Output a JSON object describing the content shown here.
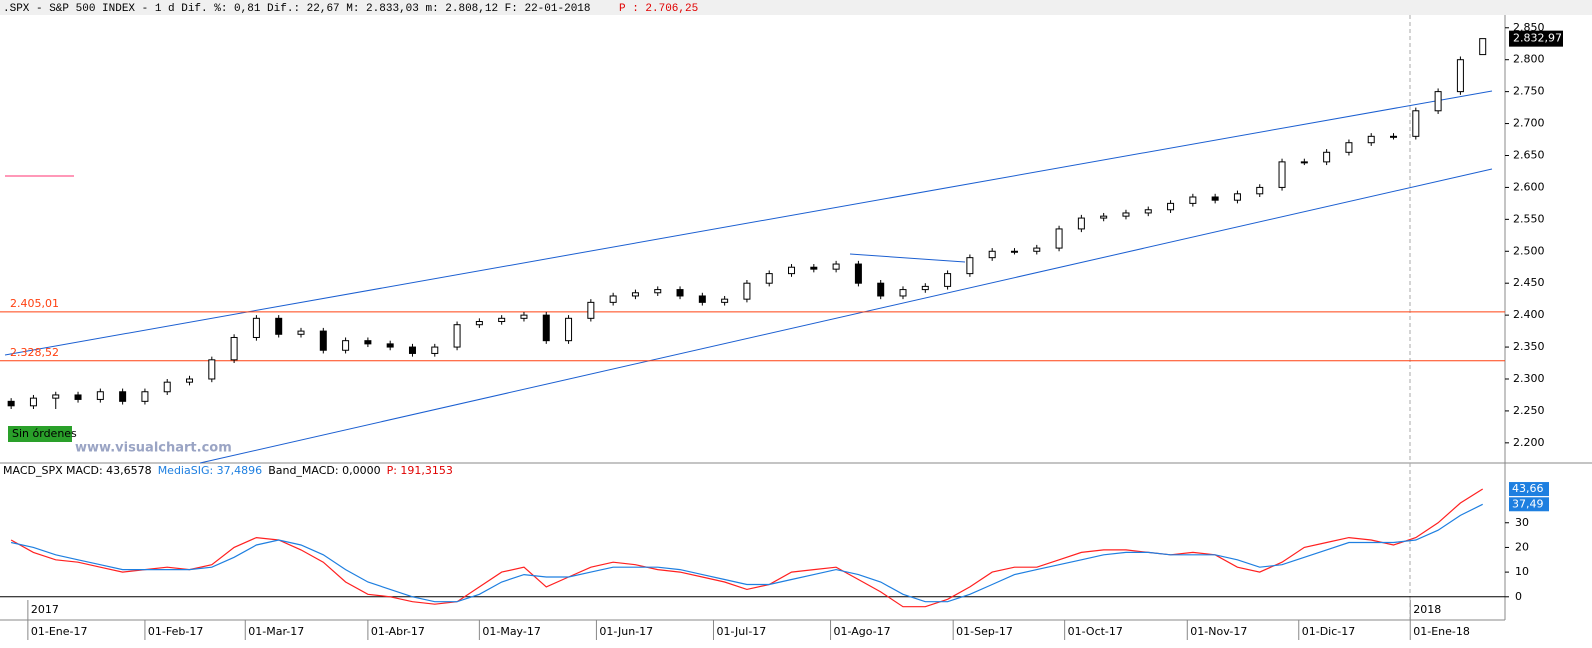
{
  "header": {
    "main": ".SPX - S&P 500 INDEX -  1 d Dif. %: 0,81 Dif.: 22,67 M: 2.833,03 m: 2.808,12 F: 22-01-2018",
    "p": "P : 2.706,25"
  },
  "chart_data": [
    {
      "type": "candlestick",
      "up_color": "#ffffff",
      "down_color": "#000000",
      "xlim": [
        -2,
        268
      ],
      "ylim": [
        2170,
        2870
      ],
      "yticks": [
        {
          "value": 2200,
          "label": "2.200"
        },
        {
          "value": 2250,
          "label": "2.250"
        },
        {
          "value": 2300,
          "label": "2.300"
        },
        {
          "value": 2350,
          "label": "2.350"
        },
        {
          "value": 2400,
          "label": "2.400"
        },
        {
          "value": 2450,
          "label": "2.450"
        },
        {
          "value": 2500,
          "label": "2.500"
        },
        {
          "value": 2550,
          "label": "2.550"
        },
        {
          "value": 2600,
          "label": "2.600"
        },
        {
          "value": 2650,
          "label": "2.650"
        },
        {
          "value": 2700,
          "label": "2.700"
        },
        {
          "value": 2750,
          "label": "2.750"
        },
        {
          "value": 2800,
          "label": "2.800"
        },
        {
          "value": 2850,
          "label": "2.850"
        }
      ],
      "xticks": [
        {
          "value": 3,
          "label": "01-Ene-17"
        },
        {
          "value": 24,
          "label": "01-Feb-17"
        },
        {
          "value": 42,
          "label": "01-Mar-17"
        },
        {
          "value": 64,
          "label": "01-Abr-17"
        },
        {
          "value": 84,
          "label": "01-May-17"
        },
        {
          "value": 105,
          "label": "01-Jun-17"
        },
        {
          "value": 126,
          "label": "01-Jul-17"
        },
        {
          "value": 147,
          "label": "01-Ago-17"
        },
        {
          "value": 169,
          "label": "01-Sep-17"
        },
        {
          "value": 189,
          "label": "01-Oct-17"
        },
        {
          "value": 211,
          "label": "01-Nov-17"
        },
        {
          "value": 231,
          "label": "01-Dic-17"
        },
        {
          "value": 251,
          "label": "01-Ene-18"
        }
      ],
      "years": [
        {
          "value": 3,
          "label": "2017"
        },
        {
          "value": 251,
          "label": "2018"
        }
      ],
      "last_price": {
        "value": 2832.97,
        "label": "2.832,97"
      },
      "levels": [
        {
          "value": 2405.01,
          "label": "2.405,01"
        },
        {
          "value": 2328.52,
          "label": "2.328,52"
        }
      ],
      "badge": "Sin órdenes",
      "watermark": "www.visualchart.com",
      "x": [
        0,
        4,
        8,
        12,
        16,
        20,
        24,
        28,
        32,
        36,
        40,
        44,
        48,
        52,
        56,
        60,
        64,
        68,
        72,
        76,
        80,
        84,
        88,
        92,
        96,
        100,
        104,
        108,
        112,
        116,
        120,
        124,
        128,
        132,
        136,
        140,
        144,
        148,
        152,
        156,
        160,
        164,
        168,
        172,
        176,
        180,
        184,
        188,
        192,
        196,
        200,
        204,
        208,
        212,
        216,
        220,
        224,
        228,
        232,
        236,
        240,
        244,
        248,
        252,
        256,
        260,
        264
      ],
      "open": [
        2265,
        2258,
        2270,
        2275,
        2268,
        2280,
        2265,
        2280,
        2295,
        2300,
        2330,
        2365,
        2395,
        2370,
        2375,
        2345,
        2360,
        2355,
        2350,
        2340,
        2350,
        2385,
        2390,
        2395,
        2400,
        2360,
        2395,
        2420,
        2430,
        2435,
        2440,
        2430,
        2420,
        2425,
        2450,
        2465,
        2475,
        2472,
        2480,
        2450,
        2430,
        2440,
        2445,
        2465,
        2490,
        2500,
        2500,
        2505,
        2535,
        2552,
        2555,
        2560,
        2565,
        2575,
        2585,
        2580,
        2590,
        2600,
        2640,
        2640,
        2655,
        2670,
        2680,
        2680,
        2720,
        2750,
        2808
      ],
      "high": [
        2270,
        2275,
        2280,
        2280,
        2285,
        2285,
        2285,
        2300,
        2305,
        2335,
        2370,
        2400,
        2400,
        2380,
        2380,
        2365,
        2365,
        2360,
        2355,
        2355,
        2390,
        2395,
        2400,
        2405,
        2405,
        2400,
        2425,
        2435,
        2440,
        2445,
        2445,
        2435,
        2430,
        2455,
        2470,
        2480,
        2480,
        2485,
        2485,
        2455,
        2445,
        2450,
        2470,
        2495,
        2505,
        2505,
        2510,
        2540,
        2557,
        2560,
        2565,
        2570,
        2580,
        2590,
        2590,
        2595,
        2605,
        2645,
        2645,
        2660,
        2675,
        2685,
        2685,
        2725,
        2755,
        2805,
        2833
      ],
      "low": [
        2253,
        2253,
        2253,
        2263,
        2263,
        2260,
        2260,
        2275,
        2290,
        2295,
        2325,
        2360,
        2365,
        2365,
        2340,
        2340,
        2350,
        2345,
        2335,
        2335,
        2345,
        2380,
        2385,
        2390,
        2355,
        2355,
        2390,
        2415,
        2425,
        2430,
        2425,
        2415,
        2415,
        2420,
        2445,
        2460,
        2467,
        2467,
        2445,
        2425,
        2425,
        2435,
        2440,
        2460,
        2485,
        2495,
        2495,
        2500,
        2530,
        2547,
        2550,
        2555,
        2560,
        2570,
        2575,
        2575,
        2585,
        2595,
        2635,
        2635,
        2650,
        2665,
        2675,
        2675,
        2715,
        2745,
        2808
      ],
      "close": [
        2258,
        2270,
        2275,
        2268,
        2280,
        2265,
        2280,
        2295,
        2300,
        2330,
        2365,
        2395,
        2370,
        2375,
        2345,
        2360,
        2355,
        2350,
        2340,
        2350,
        2385,
        2390,
        2395,
        2400,
        2360,
        2395,
        2420,
        2430,
        2435,
        2440,
        2430,
        2420,
        2425,
        2450,
        2465,
        2475,
        2472,
        2480,
        2450,
        2430,
        2440,
        2445,
        2465,
        2490,
        2500,
        2500,
        2505,
        2535,
        2552,
        2555,
        2560,
        2565,
        2575,
        2585,
        2580,
        2590,
        2600,
        2640,
        2640,
        2655,
        2670,
        2680,
        2680,
        2720,
        2750,
        2800,
        2833
      ]
    },
    {
      "type": "line",
      "title": "MACD_SPX",
      "band": "Band_MACD: 0,0000",
      "p": "P: 191,3153",
      "xlim": [
        -2,
        268
      ],
      "ylim": [
        -9,
        53
      ],
      "yticks": [
        0,
        10,
        20,
        30
      ],
      "x": [
        0,
        4,
        8,
        12,
        16,
        20,
        24,
        28,
        32,
        36,
        40,
        44,
        48,
        52,
        56,
        60,
        64,
        68,
        72,
        76,
        80,
        84,
        88,
        92,
        96,
        100,
        104,
        108,
        112,
        116,
        120,
        124,
        128,
        132,
        136,
        140,
        144,
        148,
        152,
        156,
        160,
        164,
        168,
        172,
        176,
        180,
        184,
        188,
        192,
        196,
        200,
        204,
        208,
        212,
        216,
        220,
        224,
        228,
        232,
        236,
        240,
        244,
        248,
        252,
        256,
        260,
        264
      ],
      "series": [
        {
          "name": "MACD",
          "readout": ": 43,6578",
          "color": "#ff2020",
          "last": {
            "value": 43.66,
            "label": "43,66"
          },
          "values": [
            23,
            18,
            15,
            14,
            12,
            10,
            11,
            12,
            11,
            13,
            20,
            24,
            23,
            19,
            14,
            6,
            1,
            0,
            -2,
            -3,
            -2,
            4,
            10,
            12,
            4,
            8,
            12,
            14,
            13,
            11,
            10,
            8,
            6,
            3,
            5,
            10,
            11,
            12,
            7,
            2,
            -4,
            -4,
            -1,
            4,
            10,
            12,
            12,
            15,
            18,
            19,
            19,
            18,
            17,
            18,
            17,
            12,
            10,
            14,
            20,
            22,
            24,
            23,
            21,
            24,
            30,
            38,
            43.66
          ]
        },
        {
          "name": "MediaSIG",
          "readout": ": 37,4896",
          "color": "#1e7fe0",
          "last": {
            "value": 37.49,
            "label": "37,49"
          },
          "values": [
            22,
            20,
            17,
            15,
            13,
            11,
            11,
            11,
            11,
            12,
            16,
            21,
            23,
            21,
            17,
            11,
            6,
            3,
            0,
            -2,
            -2,
            1,
            6,
            9,
            8,
            8,
            10,
            12,
            12,
            12,
            11,
            9,
            7,
            5,
            5,
            7,
            9,
            11,
            9,
            6,
            1,
            -2,
            -2,
            1,
            5,
            9,
            11,
            13,
            15,
            17,
            18,
            18,
            17,
            17,
            17,
            15,
            12,
            13,
            16,
            19,
            22,
            22,
            22,
            23,
            27,
            33,
            37.49
          ]
        }
      ]
    }
  ]
}
